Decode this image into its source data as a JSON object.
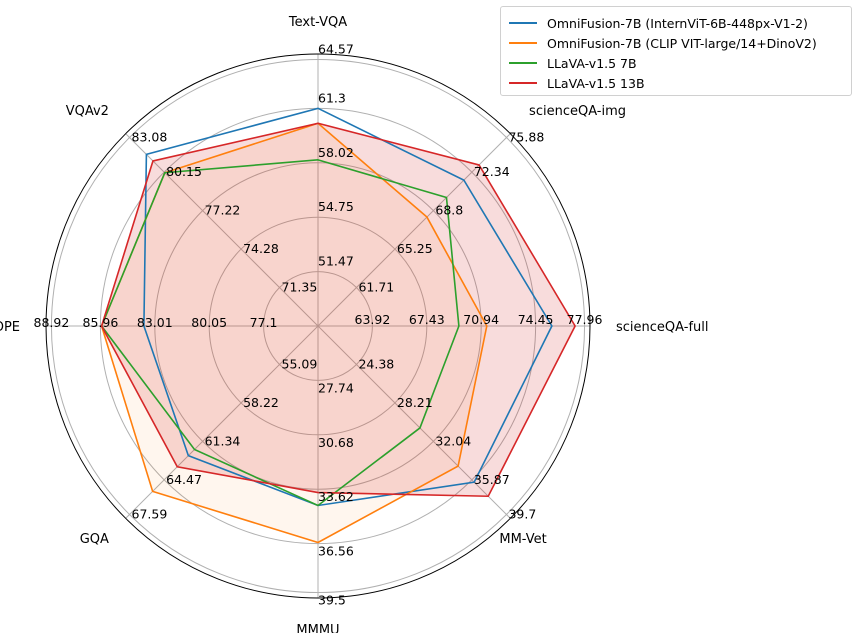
{
  "chart_data": {
    "type": "radar",
    "axes": [
      "Text-VQA",
      "scienceQA-img",
      "scienceQA-full",
      "MM-Vet",
      "MMMU",
      "GQA",
      "POPE",
      "VQAv2"
    ],
    "ticks": {
      "Text-VQA": [
        "51.47",
        "54.75",
        "58.02",
        "61.3",
        "64.57"
      ],
      "scienceQA-img": [
        "61.71",
        "65.25",
        "68.8",
        "72.34",
        "75.88"
      ],
      "scienceQA-full": [
        "63.92",
        "67.43",
        "70.94",
        "74.45",
        "77.96"
      ],
      "MM-Vet": [
        "24.38",
        "28.21",
        "32.04",
        "35.87",
        "39.7"
      ],
      "MMMU": [
        "27.74",
        "30.68",
        "33.62",
        "36.56",
        "39.5"
      ],
      "GQA": [
        "55.09",
        "58.22",
        "61.34",
        "64.47",
        "67.59"
      ],
      "POPE": [
        "77.1",
        "80.05",
        "83.01",
        "85.96",
        "88.92"
      ],
      "VQAv2": [
        "71.35",
        "74.28",
        "77.22",
        "80.15",
        "83.08"
      ]
    },
    "axis_min": [
      48.2,
      58.17,
      60.41,
      20.55,
      24.8,
      51.97,
      74.14,
      68.42
    ],
    "axis_max": [
      64.57,
      75.88,
      77.96,
      39.7,
      39.5,
      67.59,
      88.92,
      83.08
    ],
    "series": [
      {
        "name": "OmniFusion-7B (InternViT-6B-448px-V1-2)",
        "color": "#1f77b4",
        "values": [
          61.3,
          71.6,
          75.5,
          36.1,
          34.5,
          62.5,
          83.6,
          81.5
        ]
      },
      {
        "name": "OmniFusion-7B (CLIP VIT-large/14+DinoV2)",
        "color": "#ff7f0e",
        "values": [
          60.4,
          68.2,
          71.3,
          34.5,
          36.5,
          65.4,
          85.9,
          80.1
        ]
      },
      {
        "name": "LLaVA-v1.5 7B",
        "color": "#2ca02c",
        "values": [
          58.2,
          70.0,
          69.5,
          30.7,
          34.5,
          62.0,
          85.9,
          80.1
        ]
      },
      {
        "name": "LLaVA-v1.5 13B",
        "color": "#d62728",
        "values": [
          60.4,
          73.0,
          77.0,
          37.5,
          33.8,
          63.4,
          85.9,
          81.0
        ]
      }
    ],
    "fill_series": [
      "LLaVA-v1.5 13B",
      "OmniFusion-7B (CLIP VIT-large/14+DinoV2)"
    ],
    "legend_position": "top-right",
    "grid": true
  }
}
